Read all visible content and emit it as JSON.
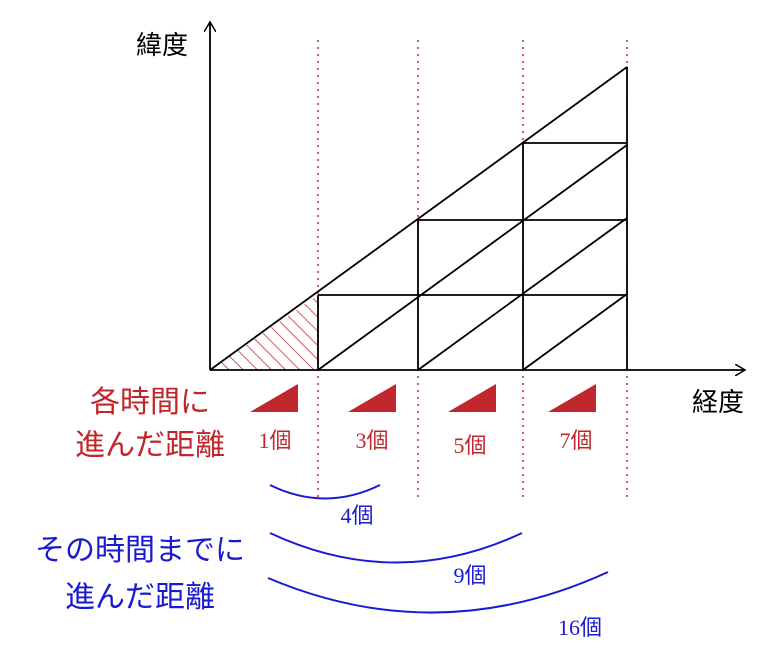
{
  "axes": {
    "y_label": "緯度",
    "x_label": "経度"
  },
  "per_time": {
    "label_lines": [
      "各時間に",
      "進んだ距離"
    ],
    "counts": [
      "1個",
      "3個",
      "5個",
      "7個"
    ]
  },
  "cumulative": {
    "label_lines": [
      "その時間までに",
      "進んだ距離"
    ],
    "counts": [
      "4個",
      "9個",
      "16個"
    ]
  }
}
